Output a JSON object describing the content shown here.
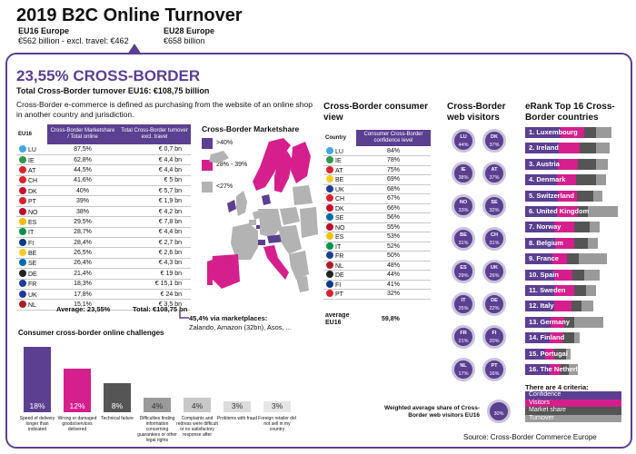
{
  "header": {
    "title": "2019 B2C Online Turnover",
    "eu16": {
      "title": "EU16 Europe",
      "value": "€562 billion - excl. travel: €462"
    },
    "eu28": {
      "title": "EU28 Europe",
      "value": "€658 billion"
    }
  },
  "cross_border": {
    "headline": "23,55% CROSS-BORDER",
    "subtitle": "Total Cross-Border turnover EU16: €108,75 billion",
    "definition": "Cross-Border e-commerce is defined as purchasing from the website of an online shop in another country and jurisdiction."
  },
  "turnover_table": {
    "col_country": "EU16",
    "col_share": "Cross-Border Marketshare / Total online",
    "col_total": "Total Cross-Border turnover excl. travel",
    "rows": [
      {
        "country": "LU",
        "share": "87,5%",
        "total": "€ 0,7 bn",
        "flag": "#3fa8e0"
      },
      {
        "country": "IE",
        "share": "62,8%",
        "total": "€ 4,4 bn",
        "flag": "#2e9a4a"
      },
      {
        "country": "AT",
        "share": "44,5%",
        "total": "€ 4,4 bn",
        "flag": "#d8232a"
      },
      {
        "country": "CH",
        "share": "41,6%",
        "total": "€ 5 bn",
        "flag": "#d8232a"
      },
      {
        "country": "DK",
        "share": "40%",
        "total": "€ 5,7 bn",
        "flag": "#c8102e"
      },
      {
        "country": "PT",
        "share": "39%",
        "total": "€ 1,9 bn",
        "flag": "#d8232a"
      },
      {
        "country": "NO",
        "share": "38%",
        "total": "€ 4,2 bn",
        "flag": "#ba0c2f"
      },
      {
        "country": "ES",
        "share": "29,5%",
        "total": "€ 7,8 bn",
        "flag": "#f1bf00"
      },
      {
        "country": "IT",
        "share": "28,7%",
        "total": "€ 4,4 bn",
        "flag": "#009246"
      },
      {
        "country": "FI",
        "share": "28,4%",
        "total": "€ 2,7 bn",
        "flag": "#0a3a8c"
      },
      {
        "country": "BE",
        "share": "26,5%",
        "total": "€ 2,6 bn",
        "flag": "#f4cd2a"
      },
      {
        "country": "SE",
        "share": "26,4%",
        "total": "€ 4,3 bn",
        "flag": "#006aa7"
      },
      {
        "country": "DE",
        "share": "21,4%",
        "total": "€ 19 bn",
        "flag": "#222222"
      },
      {
        "country": "FR",
        "share": "18,3%",
        "total": "€ 15,1 bn",
        "flag": "#1f3c99"
      },
      {
        "country": "UK",
        "share": "17,8%",
        "total": "€ 24 bn",
        "flag": "#1f3c99"
      },
      {
        "country": "NL",
        "share": "15,1%",
        "total": "€ 3,5 bn",
        "flag": "#ae1c28"
      }
    ],
    "average_label": "Average: 23,55%",
    "total_label": "Total: €108,75 bn"
  },
  "marketshare_map": {
    "title": "Cross-Border Marketshare",
    "legend": [
      {
        "label": ">40%",
        "color": "#5b3f91"
      },
      {
        "label": "28% - 39%",
        "color": "#d41f8c"
      },
      {
        "label": "<27%",
        "color": "#b3b3b3"
      }
    ],
    "marketplaces_headline": "45,4% via marketplaces:",
    "marketplaces_text": "Zalando, Amazon (32bn), Asos, ..."
  },
  "consumer_view": {
    "title": "Cross-Border consumer view",
    "col_country": "Country",
    "col_conf": "Consumer Cross-Border confidence level",
    "rows": [
      {
        "country": "LU",
        "value": "84%",
        "flag": "#3fa8e0"
      },
      {
        "country": "IE",
        "value": "78%",
        "flag": "#2e9a4a"
      },
      {
        "country": "AT",
        "value": "75%",
        "flag": "#d8232a"
      },
      {
        "country": "BE",
        "value": "69%",
        "flag": "#f4cd2a"
      },
      {
        "country": "UK",
        "value": "68%",
        "flag": "#1f3c99"
      },
      {
        "country": "CH",
        "value": "67%",
        "flag": "#d8232a"
      },
      {
        "country": "DK",
        "value": "66%",
        "flag": "#c8102e"
      },
      {
        "country": "SE",
        "value": "56%",
        "flag": "#006aa7"
      },
      {
        "country": "NO",
        "value": "55%",
        "flag": "#ba0c2f"
      },
      {
        "country": "ES",
        "value": "53%",
        "flag": "#f1bf00"
      },
      {
        "country": "IT",
        "value": "52%",
        "flag": "#009246"
      },
      {
        "country": "FR",
        "value": "50%",
        "flag": "#1f3c99"
      },
      {
        "country": "NL",
        "value": "48%",
        "flag": "#ae1c28"
      },
      {
        "country": "DE",
        "value": "44%",
        "flag": "#222222"
      },
      {
        "country": "FI",
        "value": "41%",
        "flag": "#0a3a8c"
      },
      {
        "country": "PT",
        "value": "32%",
        "flag": "#d8232a"
      }
    ],
    "average_label": "average EU16",
    "average_value": "59,8%"
  },
  "web_visitors": {
    "title": "Cross-Border web visitors",
    "circles": [
      {
        "country": "LU",
        "value": "44%",
        "color": "#5b3f91"
      },
      {
        "country": "DK",
        "value": "37%",
        "color": "#5b3f91"
      },
      {
        "country": "IE",
        "value": "38%",
        "color": "#5b3f91"
      },
      {
        "country": "AT",
        "value": "37%",
        "color": "#5b3f91"
      },
      {
        "country": "NO",
        "value": "33%",
        "color": "#5b3f91"
      },
      {
        "country": "SE",
        "value": "32%",
        "color": "#5b3f91"
      },
      {
        "country": "BE",
        "value": "31%",
        "color": "#5b3f91"
      },
      {
        "country": "CH",
        "value": "31%",
        "color": "#5b3f91"
      },
      {
        "country": "ES",
        "value": "29%",
        "color": "#5b3f91"
      },
      {
        "country": "UK",
        "value": "26%",
        "color": "#5b3f91"
      },
      {
        "country": "IT",
        "value": "25%",
        "color": "#5b3f91"
      },
      {
        "country": "DE",
        "value": "22%",
        "color": "#5b3f91"
      },
      {
        "country": "FR",
        "value": "21%",
        "color": "#5b3f91"
      },
      {
        "country": "FI",
        "value": "20%",
        "color": "#5b3f91"
      },
      {
        "country": "NL",
        "value": "17%",
        "color": "#5b3f91"
      },
      {
        "country": "PT",
        "value": "16%",
        "color": "#5b3f91"
      }
    ],
    "average_value": "30%",
    "average_label": "Weighted average share of Cross-Border web visitors EU16"
  },
  "erank": {
    "title": "eRank Top 16 Cross-Border countries",
    "items": [
      {
        "label": "1. Luxembourg",
        "segments": [
          0.36,
          0.24,
          0.12,
          0.16
        ]
      },
      {
        "label": "2. Ireland",
        "segments": [
          0.34,
          0.22,
          0.16,
          0.14
        ]
      },
      {
        "label": "3. Austria",
        "segments": [
          0.33,
          0.21,
          0.18,
          0.12
        ]
      },
      {
        "label": "4. Denmark",
        "segments": [
          0.32,
          0.2,
          0.2,
          0.1
        ]
      },
      {
        "label": "5. Switzerland",
        "segments": [
          0.33,
          0.2,
          0.16,
          0.1
        ]
      },
      {
        "label": "6. United Kingdom",
        "segments": [
          0.32,
          0.22,
          0.1,
          0.3
        ]
      },
      {
        "label": "7. Norway",
        "segments": [
          0.3,
          0.2,
          0.16,
          0.1
        ]
      },
      {
        "label": "8. Belgium",
        "segments": [
          0.31,
          0.19,
          0.14,
          0.1
        ]
      },
      {
        "label": "9. France",
        "segments": [
          0.28,
          0.15,
          0.12,
          0.28
        ]
      },
      {
        "label": "10. Spain",
        "segments": [
          0.3,
          0.18,
          0.12,
          0.16
        ]
      },
      {
        "label": "11. Sweden",
        "segments": [
          0.3,
          0.2,
          0.12,
          0.1
        ]
      },
      {
        "label": "12. Italy",
        "segments": [
          0.3,
          0.17,
          0.1,
          0.12
        ]
      },
      {
        "label": "13. Germany",
        "segments": [
          0.26,
          0.14,
          0.1,
          0.3
        ]
      },
      {
        "label": "14. Finland",
        "segments": [
          0.25,
          0.13,
          0.12,
          0.06
        ]
      },
      {
        "label": "15. Portugal",
        "segments": [
          0.2,
          0.1,
          0.12,
          0.04
        ]
      },
      {
        "label": "16. The Netherlands",
        "segments": [
          0.25,
          0.11,
          0.08,
          0.1
        ]
      }
    ],
    "criteria_title": "There are 4 criteria:",
    "criteria": [
      {
        "label": "Confidence",
        "color": "#5b3f91"
      },
      {
        "label": "Visitors",
        "color": "#d41f8c"
      },
      {
        "label": "Market share",
        "color": "#555555"
      },
      {
        "label": "Turnover",
        "color": "#9a9a9a"
      }
    ]
  },
  "chart_data": {
    "type": "bar",
    "title": "Consumer cross-border online challenges",
    "categories": [
      "Speed of delivery longer than indicated",
      "Wrong or damaged goods/services delivered",
      "Technical failure",
      "Difficulties finding information concerning guarantees or other legal rights",
      "Complaints and redress were difficult or no satisfactory response after",
      "Problems with fraud",
      "Foreign retailer did not sell in my country"
    ],
    "values": [
      18,
      12,
      8,
      4,
      4,
      3,
      3
    ],
    "labels": [
      "18%",
      "12%",
      "8%",
      "4%",
      "4%",
      "3%",
      "3%"
    ],
    "colors": [
      "#5b3f91",
      "#d41f8c",
      "#555555",
      "#9a9a9a",
      "#c8c8c8",
      "#dcdcdc",
      "#e6e6e6"
    ],
    "ylim": [
      0,
      18
    ]
  },
  "source": "Source: Cross-Border Commerce Europe"
}
